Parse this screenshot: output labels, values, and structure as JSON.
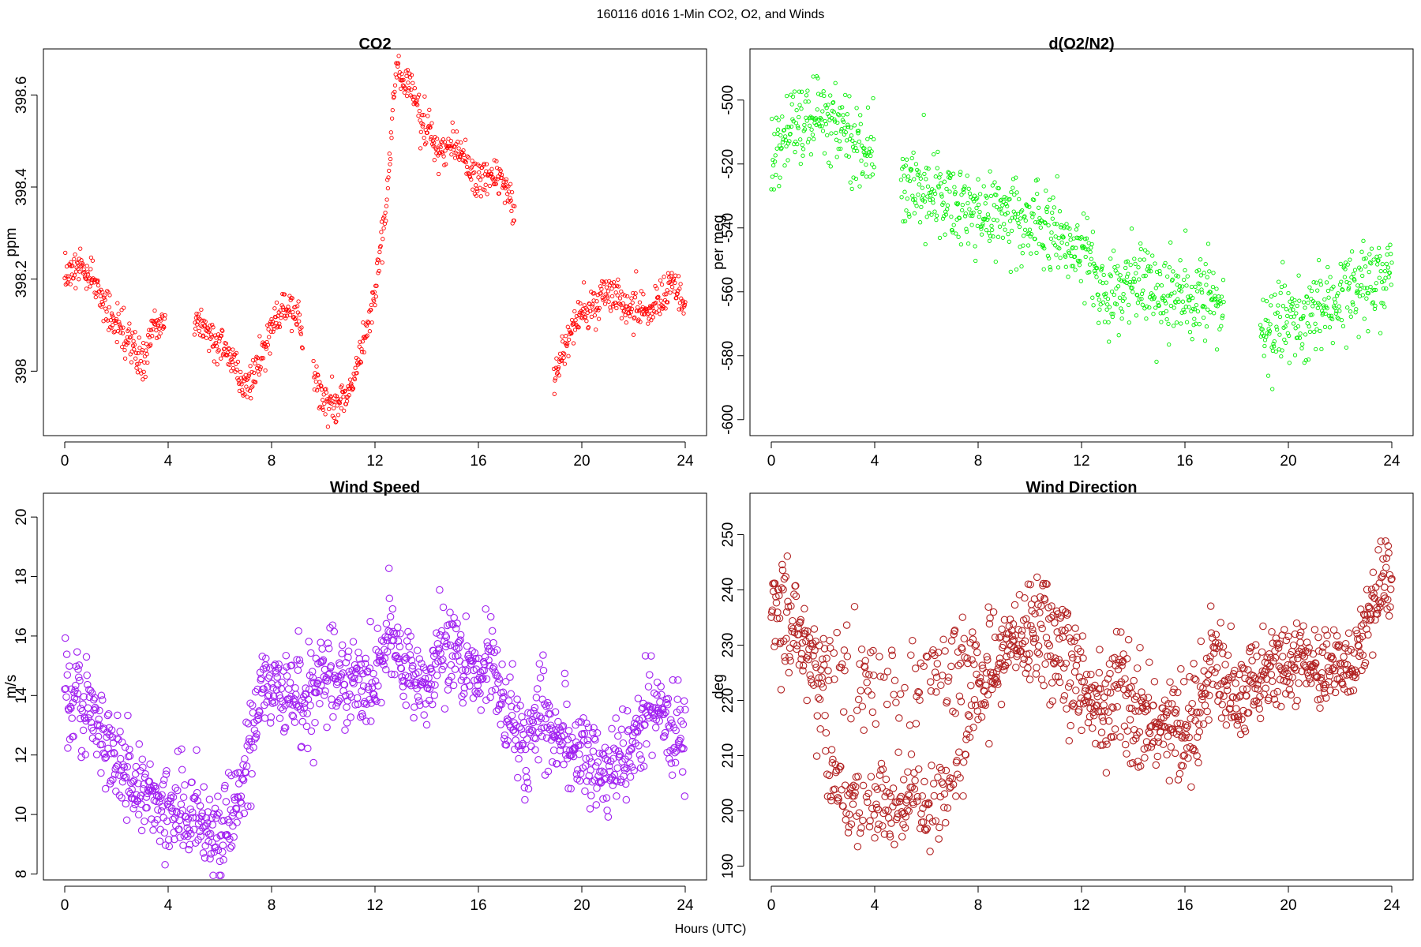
{
  "figure": {
    "title": "160116   d016   1-Min CO2, O2, and Winds",
    "xlabel": "Hours (UTC)"
  },
  "chart_data": [
    {
      "type": "scatter",
      "title": "CO2",
      "ylabel": "ppm",
      "xlabel": "",
      "xlim": [
        0,
        24
      ],
      "xticks": [
        0,
        4,
        8,
        12,
        16,
        20,
        24
      ],
      "ylim": [
        397.86,
        398.7
      ],
      "yticks": [
        398.0,
        398.2,
        398.4,
        398.6
      ],
      "color": "#ff0000",
      "marker": "small open circle",
      "gaps": [
        [
          3.9,
          5.0
        ],
        [
          9.2,
          9.6
        ],
        [
          17.4,
          18.9
        ]
      ],
      "profile": [
        [
          0.0,
          398.21
        ],
        [
          0.5,
          398.23
        ],
        [
          1.0,
          398.21
        ],
        [
          1.5,
          398.15
        ],
        [
          2.0,
          398.1
        ],
        [
          2.5,
          398.06
        ],
        [
          3.0,
          398.02
        ],
        [
          3.5,
          398.1
        ],
        [
          3.9,
          398.1
        ],
        [
          5.0,
          398.11
        ],
        [
          5.5,
          398.09
        ],
        [
          6.0,
          398.06
        ],
        [
          6.5,
          398.02
        ],
        [
          7.0,
          397.96
        ],
        [
          7.5,
          398.02
        ],
        [
          8.0,
          398.1
        ],
        [
          8.5,
          398.14
        ],
        [
          9.0,
          398.12
        ],
        [
          9.6,
          398.0
        ],
        [
          10.0,
          397.94
        ],
        [
          10.5,
          397.92
        ],
        [
          11.0,
          397.96
        ],
        [
          11.5,
          398.05
        ],
        [
          12.0,
          398.17
        ],
        [
          12.5,
          398.4
        ],
        [
          12.8,
          398.66
        ],
        [
          13.0,
          398.64
        ],
        [
          13.5,
          398.6
        ],
        [
          14.0,
          398.52
        ],
        [
          14.5,
          398.47
        ],
        [
          15.0,
          398.5
        ],
        [
          15.5,
          398.46
        ],
        [
          16.0,
          398.42
        ],
        [
          16.5,
          398.43
        ],
        [
          17.0,
          398.4
        ],
        [
          17.4,
          398.35
        ],
        [
          18.9,
          397.98
        ],
        [
          19.5,
          398.08
        ],
        [
          20.0,
          398.13
        ],
        [
          20.5,
          398.13
        ],
        [
          21.0,
          398.17
        ],
        [
          21.5,
          398.15
        ],
        [
          22.0,
          398.14
        ],
        [
          22.5,
          398.13
        ],
        [
          23.0,
          398.15
        ],
        [
          23.5,
          398.19
        ],
        [
          24.0,
          398.14
        ]
      ],
      "noise": 0.02
    },
    {
      "type": "scatter",
      "title": "d(O2/N2)",
      "ylabel": "per meg",
      "xlabel": "",
      "xlim": [
        0,
        24
      ],
      "xticks": [
        0,
        4,
        8,
        12,
        16,
        20,
        24
      ],
      "ylim": [
        -605,
        -484
      ],
      "yticks": [
        -600,
        -580,
        -560,
        -540,
        -520,
        -500
      ],
      "color": "#00ee00",
      "marker": "small open circle",
      "gaps": [
        [
          4.0,
          5.0
        ],
        [
          17.5,
          18.9
        ]
      ],
      "profile": [
        [
          0.0,
          -520
        ],
        [
          0.5,
          -510
        ],
        [
          1.0,
          -507
        ],
        [
          1.5,
          -505
        ],
        [
          2.0,
          -504
        ],
        [
          2.5,
          -508
        ],
        [
          3.0,
          -512
        ],
        [
          3.5,
          -516
        ],
        [
          4.0,
          -515
        ],
        [
          5.0,
          -527
        ],
        [
          6.0,
          -528
        ],
        [
          7.0,
          -532
        ],
        [
          8.0,
          -534
        ],
        [
          9.0,
          -535
        ],
        [
          10.0,
          -537
        ],
        [
          11.0,
          -541
        ],
        [
          12.0,
          -547
        ],
        [
          12.5,
          -557
        ],
        [
          13.0,
          -561
        ],
        [
          14.0,
          -558
        ],
        [
          15.0,
          -560
        ],
        [
          16.0,
          -561
        ],
        [
          17.0,
          -561
        ],
        [
          17.5,
          -562
        ],
        [
          18.9,
          -573
        ],
        [
          19.5,
          -572
        ],
        [
          20.0,
          -570
        ],
        [
          21.0,
          -566
        ],
        [
          22.0,
          -561
        ],
        [
          23.0,
          -559
        ],
        [
          24.0,
          -552
        ]
      ],
      "noise": 6.5
    },
    {
      "type": "scatter",
      "title": "Wind Speed",
      "ylabel": "m/s",
      "xlabel": "",
      "xlim": [
        0,
        24
      ],
      "xticks": [
        0,
        4,
        8,
        12,
        16,
        20,
        24
      ],
      "ylim": [
        7.8,
        20.8
      ],
      "yticks": [
        8,
        10,
        12,
        14,
        16,
        18,
        20
      ],
      "color": "#a020f0",
      "marker": "open circle",
      "gaps": [],
      "profile": [
        [
          0.0,
          14.1
        ],
        [
          0.5,
          14.0
        ],
        [
          1.0,
          13.5
        ],
        [
          1.5,
          13.0
        ],
        [
          2.0,
          11.8
        ],
        [
          2.5,
          11.2
        ],
        [
          3.0,
          11.0
        ],
        [
          3.5,
          10.6
        ],
        [
          4.0,
          10.2
        ],
        [
          4.5,
          10.1
        ],
        [
          5.0,
          10.2
        ],
        [
          5.5,
          9.6
        ],
        [
          6.0,
          9.3
        ],
        [
          6.5,
          10.0
        ],
        [
          7.0,
          11.5
        ],
        [
          7.5,
          13.8
        ],
        [
          8.0,
          14.5
        ],
        [
          8.5,
          14.0
        ],
        [
          9.0,
          14.2
        ],
        [
          9.5,
          14.5
        ],
        [
          10.0,
          14.8
        ],
        [
          10.5,
          14.5
        ],
        [
          11.0,
          14.6
        ],
        [
          11.5,
          14.3
        ],
        [
          12.0,
          14.2
        ],
        [
          12.5,
          16.0
        ],
        [
          13.0,
          15.6
        ],
        [
          13.5,
          14.6
        ],
        [
          14.0,
          14.3
        ],
        [
          14.5,
          15.8
        ],
        [
          15.0,
          15.5
        ],
        [
          15.5,
          14.8
        ],
        [
          16.0,
          14.5
        ],
        [
          16.5,
          15.2
        ],
        [
          17.0,
          13.6
        ],
        [
          17.5,
          12.6
        ],
        [
          18.0,
          12.5
        ],
        [
          18.5,
          13.6
        ],
        [
          19.0,
          12.6
        ],
        [
          19.5,
          12.3
        ],
        [
          20.0,
          12.0
        ],
        [
          20.5,
          11.6
        ],
        [
          21.0,
          11.6
        ],
        [
          21.5,
          11.9
        ],
        [
          22.0,
          12.3
        ],
        [
          22.5,
          13.5
        ],
        [
          23.0,
          13.6
        ],
        [
          23.5,
          12.7
        ],
        [
          24.0,
          12.5
        ]
      ],
      "noise": 0.75
    },
    {
      "type": "scatter",
      "title": "Wind Direction",
      "ylabel": "deg",
      "xlabel": "",
      "xlim": [
        0,
        24
      ],
      "xticks": [
        0,
        4,
        8,
        12,
        16,
        20,
        24
      ],
      "ylim": [
        187.5,
        257.5
      ],
      "yticks": [
        190,
        200,
        210,
        220,
        230,
        240,
        250
      ],
      "color": "#b22222",
      "marker": "open circle",
      "gaps": [],
      "profile": [
        [
          0.0,
          236
        ],
        [
          0.5,
          240
        ],
        [
          1.0,
          235
        ],
        [
          1.5,
          228
        ],
        [
          2.0,
          215
        ],
        [
          2.5,
          203
        ],
        [
          3.0,
          202
        ],
        [
          3.5,
          201
        ],
        [
          4.0,
          201
        ],
        [
          4.5,
          202
        ],
        [
          5.0,
          200
        ],
        [
          5.5,
          201
        ],
        [
          6.0,
          202
        ],
        [
          6.5,
          203
        ],
        [
          7.0,
          204
        ],
        [
          7.5,
          212
        ],
        [
          8.0,
          218
        ],
        [
          8.5,
          224
        ],
        [
          9.0,
          228
        ],
        [
          9.5,
          232
        ],
        [
          10.0,
          235
        ],
        [
          10.5,
          237
        ],
        [
          11.0,
          235
        ],
        [
          11.5,
          231
        ],
        [
          12.0,
          225
        ],
        [
          12.5,
          218
        ],
        [
          13.0,
          224
        ],
        [
          13.5,
          226
        ],
        [
          14.0,
          222
        ],
        [
          14.5,
          219
        ],
        [
          15.0,
          218
        ],
        [
          15.5,
          215
        ],
        [
          16.0,
          213
        ],
        [
          16.5,
          212
        ],
        [
          17.0,
          230
        ],
        [
          17.5,
          222
        ],
        [
          18.0,
          221
        ],
        [
          18.5,
          222
        ],
        [
          19.0,
          223
        ],
        [
          19.5,
          225
        ],
        [
          20.0,
          226
        ],
        [
          20.5,
          226
        ],
        [
          21.0,
          227
        ],
        [
          21.5,
          226
        ],
        [
          22.0,
          224
        ],
        [
          22.5,
          226
        ],
        [
          23.0,
          232
        ],
        [
          23.5,
          240
        ],
        [
          24.0,
          242
        ]
      ],
      "noise": 3.8,
      "secondary_profile": [
        [
          0.0,
          228
        ],
        [
          1.0,
          229
        ],
        [
          2.0,
          227
        ],
        [
          3.0,
          225
        ],
        [
          4.0,
          223
        ],
        [
          5.0,
          222
        ],
        [
          6.0,
          224
        ],
        [
          7.0,
          226
        ],
        [
          8.0,
          229
        ],
        [
          9.0,
          231
        ],
        [
          10.0,
          228
        ],
        [
          11.0,
          224
        ],
        [
          12.0,
          219
        ],
        [
          13.0,
          213
        ],
        [
          14.0,
          212
        ],
        [
          15.0,
          213
        ],
        [
          16.0,
          219
        ],
        [
          17.0,
          222
        ]
      ]
    }
  ]
}
